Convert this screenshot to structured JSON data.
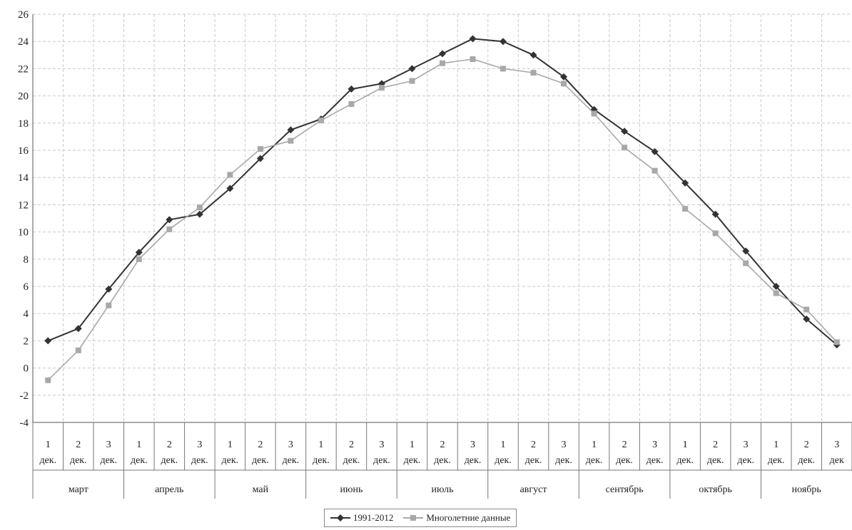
{
  "chart_data": {
    "type": "line",
    "title": "",
    "xlabel": "",
    "ylabel": "",
    "ylim": [
      -4,
      26
    ],
    "yticks": [
      "26",
      "24",
      "22",
      "20",
      "18",
      "16",
      "14",
      "12",
      "10",
      "8",
      "6",
      "4",
      "2",
      "0",
      "-2",
      "-4"
    ],
    "grid": true,
    "legend_position": "bottom",
    "categories": [
      {
        "month": "март",
        "decade": "1",
        "unit": "дек."
      },
      {
        "month": "март",
        "decade": "2",
        "unit": "дек."
      },
      {
        "month": "март",
        "decade": "3",
        "unit": "дек."
      },
      {
        "month": "апрель",
        "decade": "1",
        "unit": "дек."
      },
      {
        "month": "апрель",
        "decade": "2",
        "unit": "дек."
      },
      {
        "month": "апрель",
        "decade": "3",
        "unit": "дек."
      },
      {
        "month": "май",
        "decade": "1",
        "unit": "дек."
      },
      {
        "month": "май",
        "decade": "2",
        "unit": "дек."
      },
      {
        "month": "май",
        "decade": "3",
        "unit": "дек."
      },
      {
        "month": "июнь",
        "decade": "1",
        "unit": "дек."
      },
      {
        "month": "июнь",
        "decade": "2",
        "unit": "дек."
      },
      {
        "month": "июнь",
        "decade": "3",
        "unit": "дек."
      },
      {
        "month": "июль",
        "decade": "1",
        "unit": "дек."
      },
      {
        "month": "июль",
        "decade": "2",
        "unit": "дек."
      },
      {
        "month": "июль",
        "decade": "3",
        "unit": "дек."
      },
      {
        "month": "август",
        "decade": "1",
        "unit": "дек."
      },
      {
        "month": "август",
        "decade": "2",
        "unit": "дек."
      },
      {
        "month": "август",
        "decade": "3",
        "unit": "дек."
      },
      {
        "month": "сентябрь",
        "decade": "1",
        "unit": "дек."
      },
      {
        "month": "сентябрь",
        "decade": "2",
        "unit": "дек."
      },
      {
        "month": "сентябрь",
        "decade": "3",
        "unit": "дек."
      },
      {
        "month": "октябрь",
        "decade": "1",
        "unit": "дек."
      },
      {
        "month": "октябрь",
        "decade": "2",
        "unit": "дек."
      },
      {
        "month": "октябрь",
        "decade": "3",
        "unit": "дек."
      },
      {
        "month": "ноябрь",
        "decade": "1",
        "unit": "дек."
      },
      {
        "month": "ноябрь",
        "decade": "2",
        "unit": "дек."
      },
      {
        "month": "ноябрь",
        "decade": "3",
        "unit": "дек"
      }
    ],
    "months": [
      "март",
      "апрель",
      "май",
      "июнь",
      "июль",
      "август",
      "сентябрь",
      "октябрь",
      "ноябрь"
    ],
    "series": [
      {
        "name": "1991-2012",
        "color": "#333333",
        "marker": "diamond",
        "values": [
          2.0,
          2.9,
          5.8,
          8.5,
          10.9,
          11.3,
          13.2,
          15.4,
          17.5,
          18.3,
          20.5,
          20.9,
          22.0,
          23.1,
          24.2,
          24.0,
          23.0,
          21.4,
          19.0,
          17.4,
          15.9,
          13.6,
          11.3,
          8.6,
          6.0,
          3.6,
          1.7
        ]
      },
      {
        "name": "Многолетние данные",
        "color": "#a8a8a8",
        "marker": "square",
        "values": [
          -0.9,
          1.3,
          4.6,
          8.0,
          10.2,
          11.8,
          14.2,
          16.1,
          16.7,
          18.2,
          19.4,
          20.6,
          21.1,
          22.4,
          22.7,
          22.0,
          21.7,
          20.9,
          18.7,
          16.2,
          14.5,
          11.7,
          9.9,
          7.7,
          5.5,
          4.3,
          1.9
        ]
      }
    ]
  }
}
